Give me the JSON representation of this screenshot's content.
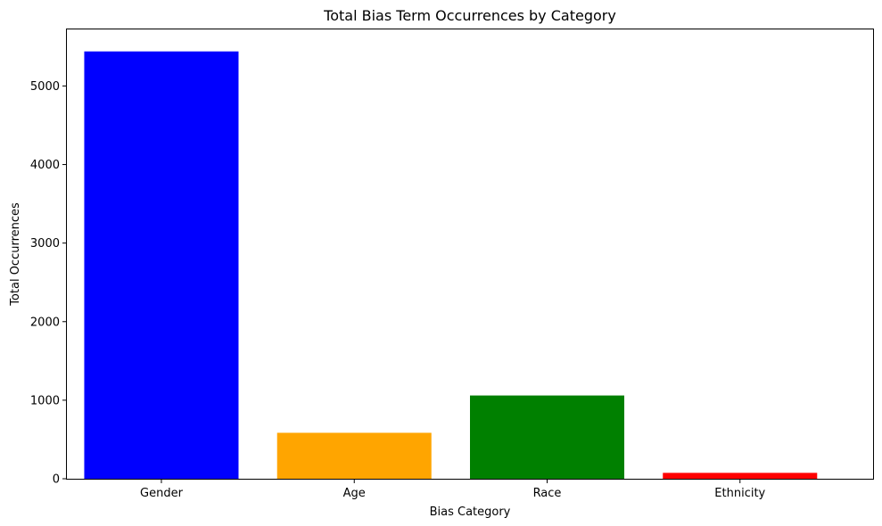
{
  "chart_data": {
    "type": "bar",
    "title": "Total Bias Term Occurrences by Category",
    "xlabel": "Bias Category",
    "ylabel": "Total Occurrences",
    "categories": [
      "Gender",
      "Age",
      "Race",
      "Ethnicity"
    ],
    "values": [
      5440,
      585,
      1060,
      75
    ],
    "colors": [
      "#0000ff",
      "#ffa500",
      "#008000",
      "#ff0000"
    ],
    "ylim": [
      0,
      5720
    ],
    "yticks": [
      0,
      1000,
      2000,
      3000,
      4000,
      5000
    ],
    "ytick_labels": [
      "0",
      "1000",
      "2000",
      "3000",
      "4000",
      "5000"
    ],
    "grid": false,
    "legend": "none"
  }
}
